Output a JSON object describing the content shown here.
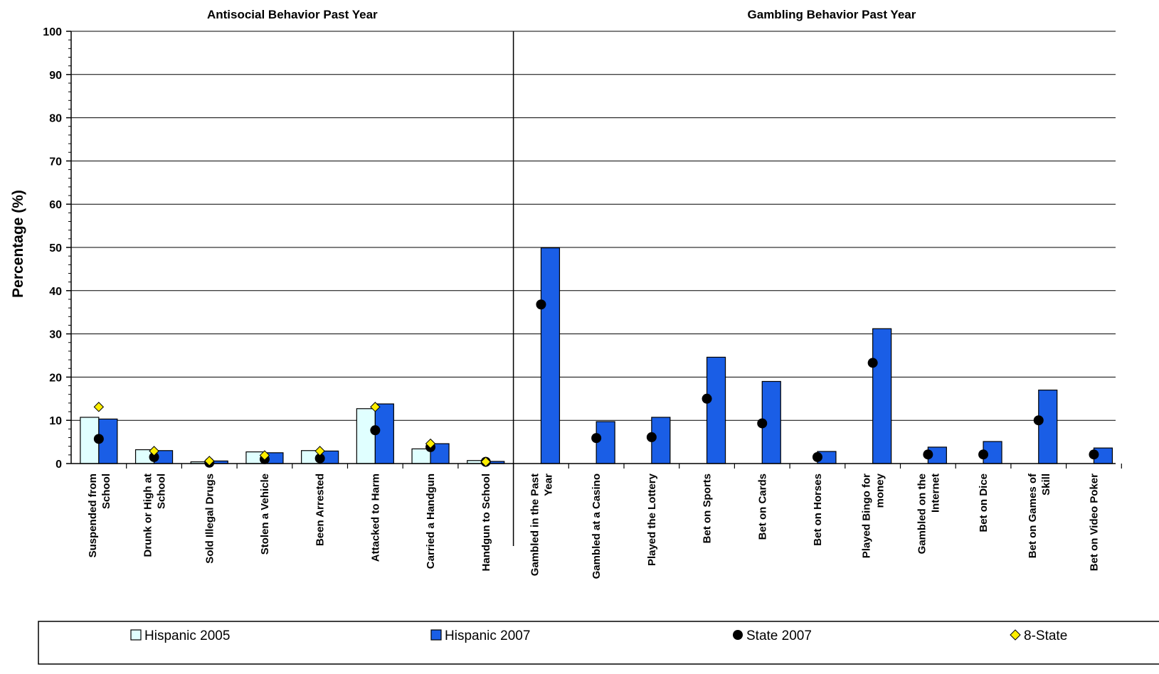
{
  "chart_data": {
    "type": "bar",
    "ylabel": "Percentage (%)",
    "ylim": [
      0,
      100
    ],
    "yticks": [
      0,
      10,
      20,
      30,
      40,
      50,
      60,
      70,
      80,
      90,
      100
    ],
    "grid": true,
    "legend_position": "bottom",
    "sections": [
      {
        "title": "Antisocial Behavior Past Year",
        "categories": [
          [
            "Suspended from",
            "School"
          ],
          [
            "Drunk or High at",
            "School"
          ],
          [
            "Sold Illegal Drugs"
          ],
          [
            "Stolen a Vehicle"
          ],
          [
            "Been Arrested"
          ],
          [
            "Attacked to Harm"
          ],
          [
            "Carried a Handgun"
          ],
          [
            "Handgun to School"
          ]
        ],
        "hispanic_2005": [
          10.7,
          3.2,
          0.4,
          2.7,
          3.0,
          12.7,
          3.4,
          0.7
        ],
        "hispanic_2007": [
          10.3,
          3.0,
          0.6,
          2.5,
          2.9,
          13.8,
          4.6,
          0.5
        ],
        "state_2007": [
          5.7,
          1.5,
          0.2,
          1.0,
          1.2,
          7.7,
          3.8,
          0.4
        ],
        "eight_state": [
          13.1,
          2.9,
          0.6,
          1.9,
          2.9,
          13.1,
          4.6,
          0.4
        ]
      },
      {
        "title": "Gambling Behavior Past Year",
        "categories": [
          [
            "Gambled in the Past",
            "Year"
          ],
          [
            "Gambled at a Casino"
          ],
          [
            "Played the Lottery"
          ],
          [
            "Bet on Sports"
          ],
          [
            "Bet on Cards"
          ],
          [
            "Bet on Horses"
          ],
          [
            "Played Bingo for",
            "money"
          ],
          [
            "Gambled on the",
            "Internet"
          ],
          [
            "Bet on Dice"
          ],
          [
            "Bet on Games of",
            "Skill"
          ],
          [
            "Bet on Video Poker"
          ]
        ],
        "hispanic_2005": [
          null,
          null,
          null,
          null,
          null,
          null,
          null,
          null,
          null,
          null,
          null
        ],
        "hispanic_2007": [
          49.9,
          9.7,
          10.7,
          24.6,
          19.0,
          2.8,
          31.2,
          3.8,
          5.1,
          17.0,
          3.6
        ],
        "state_2007": [
          36.8,
          5.9,
          6.1,
          15.0,
          9.3,
          1.5,
          23.3,
          2.1,
          2.1,
          10.0,
          2.1
        ],
        "eight_state": [
          null,
          null,
          null,
          null,
          null,
          null,
          null,
          null,
          null,
          null,
          null
        ]
      }
    ],
    "legend": [
      {
        "key": "hispanic_2005",
        "label": "Hispanic 2005",
        "color": "#e0ffff",
        "marker": "square"
      },
      {
        "key": "hispanic_2007",
        "label": "Hispanic 2007",
        "color": "#1a5ee6",
        "marker": "square"
      },
      {
        "key": "state_2007",
        "label": "State 2007",
        "color": "#000000",
        "marker": "circle"
      },
      {
        "key": "eight_state",
        "label": "8-State",
        "color": "#ffee00",
        "marker": "diamond"
      }
    ]
  }
}
